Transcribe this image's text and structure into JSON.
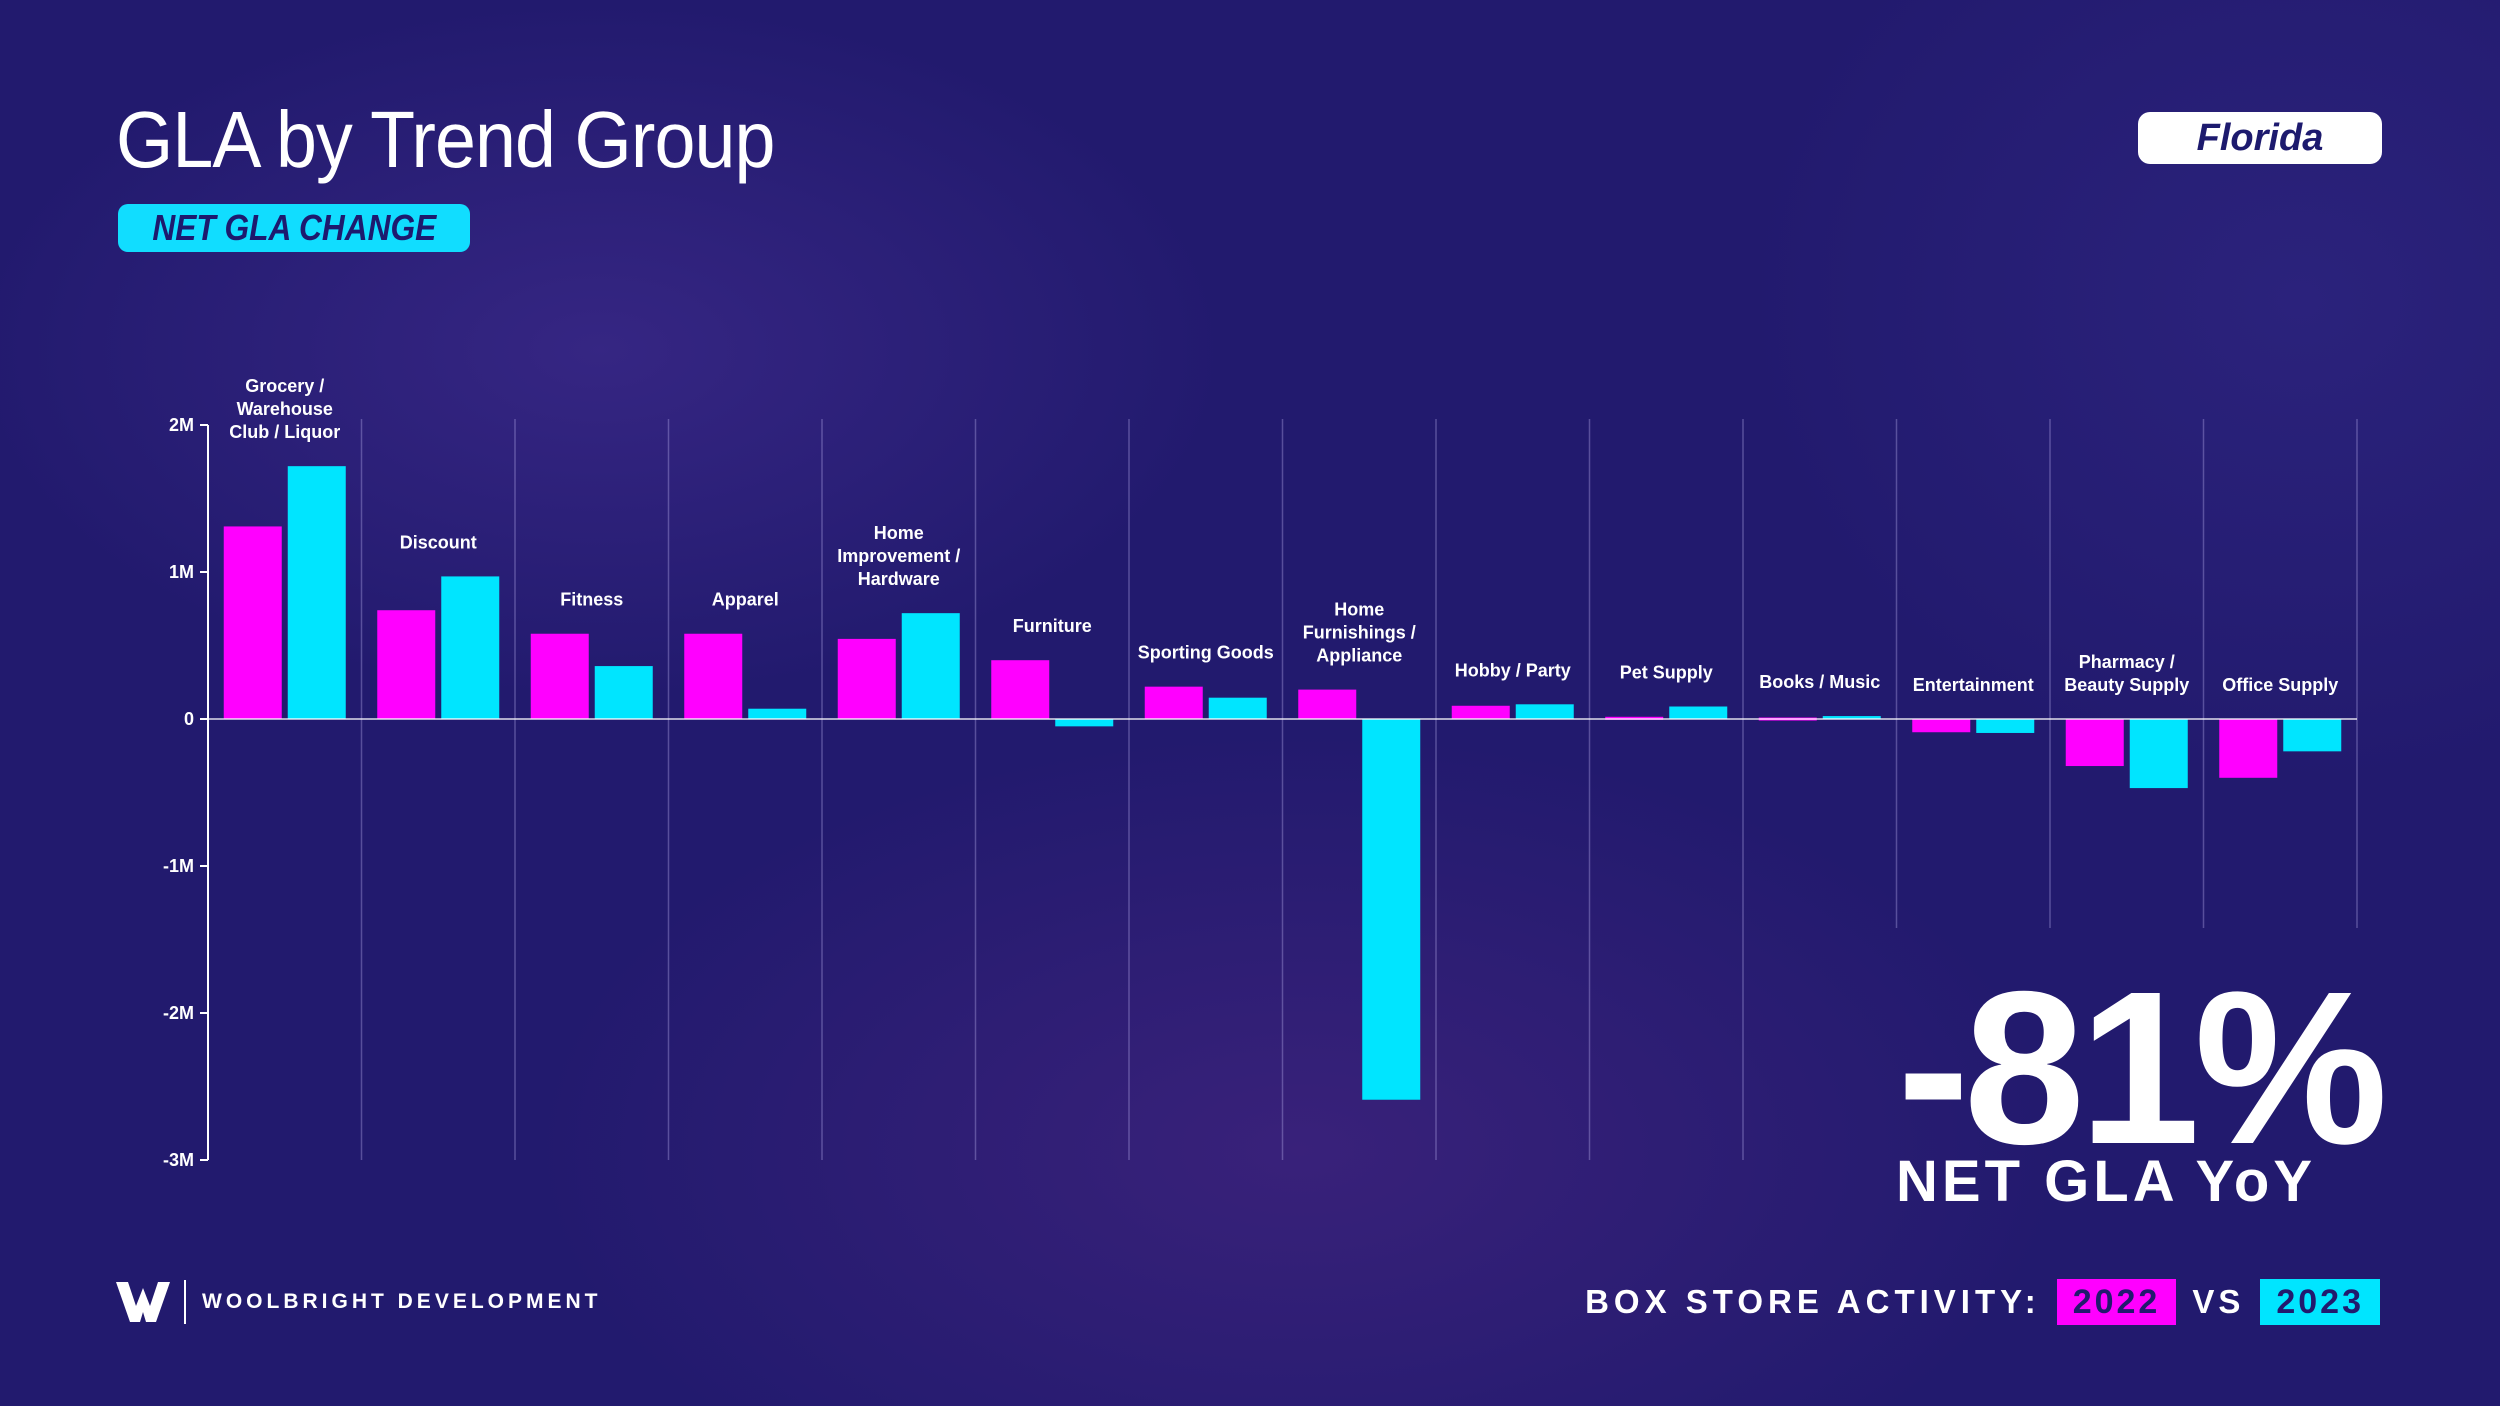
{
  "header": {
    "title": "GLA by Trend Group",
    "subtitle": "NET GLA CHANGE",
    "state": "Florida"
  },
  "colors": {
    "background": "#221a6e",
    "series_2022": "#ff00ff",
    "series_2023": "#00e5ff",
    "accent_pill": "#11ddff"
  },
  "stat": {
    "value": "-81%",
    "label": "NET GLA YoY"
  },
  "footer": {
    "brand": "WOOLBRIGHT DEVELOPMENT",
    "brand_icon": "w-logo-icon",
    "activity_label": "BOX STORE ACTIVITY:",
    "year_a": "2022",
    "vs": "VS",
    "year_b": "2023"
  },
  "chart_data": {
    "type": "bar",
    "title": "GLA by Trend Group",
    "subtitle": "NET GLA CHANGE",
    "xlabel": "",
    "ylabel": "",
    "ylim": [
      -3000000,
      2000000
    ],
    "yticks": [
      {
        "value": 2000000,
        "label": "2M"
      },
      {
        "value": 1000000,
        "label": "1M"
      },
      {
        "value": 0,
        "label": "0"
      },
      {
        "value": -1000000,
        "label": "-1M"
      },
      {
        "value": -2000000,
        "label": "-2M"
      },
      {
        "value": -3000000,
        "label": "-3M"
      }
    ],
    "categories": [
      [
        "Grocery /",
        "Warehouse",
        "Club / Liquor"
      ],
      [
        "Discount"
      ],
      [
        "Fitness"
      ],
      [
        "Apparel"
      ],
      [
        "Home",
        "Improvement /",
        "Hardware"
      ],
      [
        "Furniture"
      ],
      [
        "Sporting Goods"
      ],
      [
        "Home",
        "Furnishings /",
        "Appliance"
      ],
      [
        "Hobby / Party"
      ],
      [
        "Pet Supply"
      ],
      [
        "Books / Music"
      ],
      [
        "Entertainment"
      ],
      [
        "Pharmacy /",
        "Beauty Supply"
      ],
      [
        "Office Supply"
      ]
    ],
    "series": [
      {
        "name": "2022",
        "color": "#ff00ff",
        "values": [
          1310000,
          740000,
          580000,
          580000,
          545000,
          400000,
          220000,
          200000,
          90000,
          15000,
          10000,
          -90000,
          -320000,
          -400000
        ]
      },
      {
        "name": "2023",
        "color": "#00e5ff",
        "values": [
          1720000,
          970000,
          360000,
          70000,
          720000,
          -50000,
          145000,
          -2590000,
          100000,
          85000,
          20000,
          -95000,
          -470000,
          -220000
        ]
      }
    ],
    "legend": "bottom-right"
  }
}
